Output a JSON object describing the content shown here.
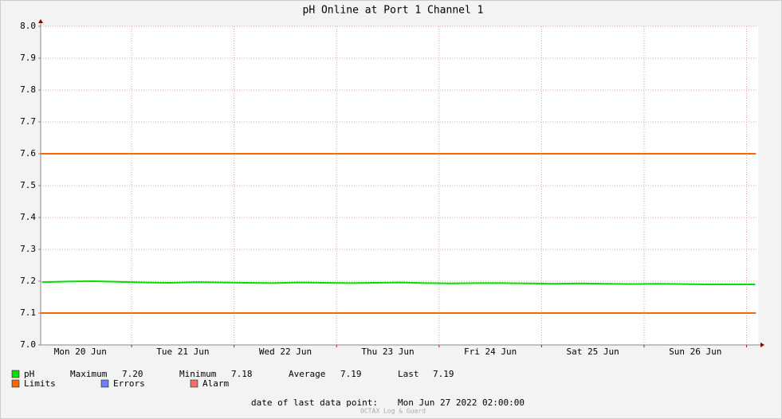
{
  "chart_data": {
    "type": "line",
    "title": "pH Online at Port 1 Channel 1",
    "x": [
      3,
      9,
      15,
      21,
      27,
      33,
      39,
      45,
      51,
      57,
      63,
      69,
      75,
      81,
      87,
      93,
      99,
      105,
      111,
      117,
      123,
      129,
      135,
      141,
      147,
      153,
      159,
      165,
      170
    ],
    "series": [
      {
        "name": "pH",
        "color": "#00e000",
        "values": [
          7.197,
          7.199,
          7.2,
          7.198,
          7.196,
          7.195,
          7.197,
          7.196,
          7.195,
          7.194,
          7.196,
          7.195,
          7.194,
          7.195,
          7.196,
          7.194,
          7.193,
          7.194,
          7.194,
          7.193,
          7.192,
          7.193,
          7.192,
          7.191,
          7.192,
          7.191,
          7.19,
          7.19,
          7.19
        ]
      }
    ],
    "limits": {
      "name": "Limits",
      "color": "#ff6600",
      "values": [
        7.6,
        7.1
      ]
    },
    "legend_extra": [
      {
        "name": "Errors",
        "color": "#6f7fff"
      },
      {
        "name": "Alarm",
        "color": "#f07070"
      }
    ],
    "stats": [
      {
        "label": "Maximum",
        "value": "7.20"
      },
      {
        "label": "Minimum",
        "value": "7.18"
      },
      {
        "label": "Average",
        "value": "7.19"
      },
      {
        "label": "Last",
        "value": "7.19"
      }
    ],
    "ylim": [
      7.0,
      8.0
    ],
    "yticks": [
      {
        "value": 7.0,
        "label": "7.0"
      },
      7.1,
      7.2,
      7.3,
      7.4,
      7.5,
      7.6,
      7.7,
      7.8,
      7.9,
      {
        "value": 8.0,
        "label": "8.0"
      }
    ],
    "xlim": [
      2.7,
      170.7
    ],
    "xticks": [
      {
        "value": 12,
        "label": "Mon 20 Jun"
      },
      {
        "value": 36,
        "label": "Tue 21 Jun"
      },
      {
        "value": 60,
        "label": "Wed 22 Jun"
      },
      {
        "value": 84,
        "label": "Thu 23 Jun"
      },
      {
        "value": 108,
        "label": "Fri 24 Jun"
      },
      {
        "value": 132,
        "label": "Sat 25 Jun"
      },
      {
        "value": 156,
        "label": "Sun 26 Jun"
      }
    ],
    "x_major_grid": [
      24,
      48,
      72,
      96,
      120,
      144,
      168
    ],
    "grid": true,
    "footer_label": "date of last data point:",
    "footer_value": "Mon Jun 27 2022 02:00:00",
    "watermark": "OCTAX Log & Guard"
  }
}
